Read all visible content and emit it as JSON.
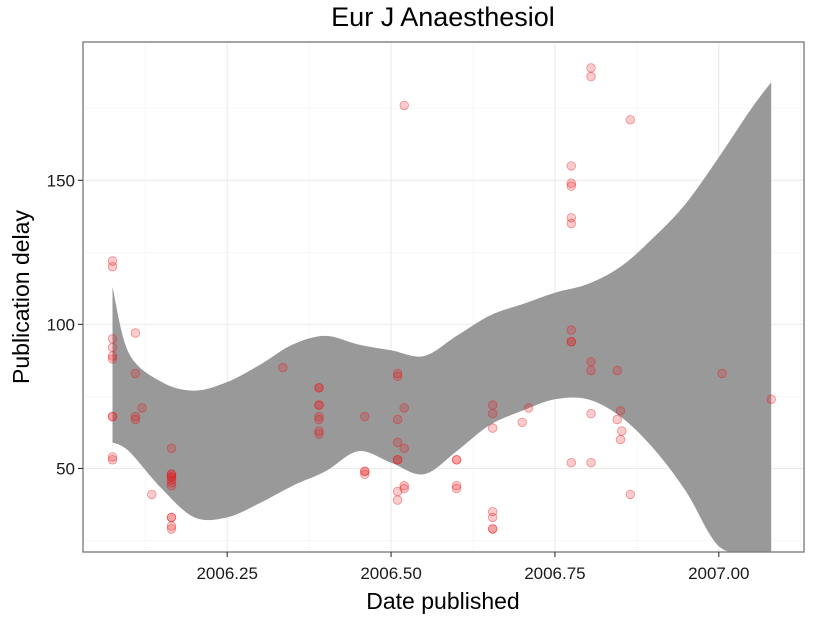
{
  "chart_data": {
    "type": "scatter",
    "title": "Eur J Anaesthesiol",
    "xlabel": "Date published",
    "ylabel": "Publication delay",
    "xlim": [
      2006.03,
      2007.13
    ],
    "ylim": [
      21,
      198
    ],
    "x_ticks": [
      2006.25,
      2006.5,
      2006.75,
      2007.0
    ],
    "x_tick_labels": [
      "2006.25",
      "2006.50",
      "2006.75",
      "2007.00"
    ],
    "y_ticks": [
      50,
      100,
      150
    ],
    "y_tick_labels": [
      "50",
      "100",
      "150"
    ],
    "grid": true,
    "legend": "none",
    "point_color": "#e8171b",
    "ribbon_color": "#999999",
    "series": [
      {
        "x": [
          2006.075,
          2006.075,
          2006.075,
          2006.075,
          2006.075,
          2006.075,
          2006.075,
          2006.075,
          2006.075,
          2006.075,
          2006.11,
          2006.11,
          2006.11,
          2006.11,
          2006.12,
          2006.135,
          2006.165,
          2006.165,
          2006.165,
          2006.165,
          2006.165,
          2006.165,
          2006.165,
          2006.165,
          2006.165,
          2006.165,
          2006.165,
          2006.165,
          2006.335,
          2006.39,
          2006.39,
          2006.39,
          2006.39,
          2006.39,
          2006.39,
          2006.39,
          2006.39,
          2006.46,
          2006.46,
          2006.46,
          2006.46,
          2006.51,
          2006.51,
          2006.51,
          2006.51,
          2006.51,
          2006.51,
          2006.51,
          2006.51,
          2006.52,
          2006.52,
          2006.52,
          2006.52,
          2006.52,
          2006.6,
          2006.6,
          2006.6,
          2006.6,
          2006.655,
          2006.655,
          2006.655,
          2006.655,
          2006.655,
          2006.655,
          2006.655,
          2006.7,
          2006.71,
          2006.775,
          2006.775,
          2006.775,
          2006.775,
          2006.775,
          2006.775,
          2006.775,
          2006.775,
          2006.775,
          2006.805,
          2006.805,
          2006.805,
          2006.805,
          2006.805,
          2006.805,
          2006.845,
          2006.845,
          2006.85,
          2006.85,
          2006.852,
          2006.865,
          2006.865,
          2007.005,
          2007.08
        ],
        "y": [
          122,
          120,
          95,
          92,
          89,
          88,
          68,
          68,
          54,
          53,
          97,
          83,
          68,
          67,
          71,
          41,
          57,
          48,
          47,
          46,
          45,
          44,
          48,
          47,
          33,
          33,
          30,
          29,
          85,
          78,
          78,
          72,
          72,
          68,
          67,
          63,
          62,
          68,
          49,
          49,
          48,
          83,
          82,
          67,
          59,
          53,
          53,
          42,
          39,
          176,
          71,
          57,
          44,
          43,
          53,
          53,
          44,
          43,
          72,
          69,
          64,
          35,
          33,
          29,
          29,
          66,
          71,
          155,
          149,
          148,
          137,
          135,
          98,
          94,
          94,
          52,
          189,
          186,
          87,
          84,
          69,
          52,
          84,
          67,
          60,
          70,
          63,
          171,
          41,
          83,
          74
        ]
      }
    ],
    "ribbon": {
      "x": [
        2006.075,
        2006.1,
        2006.15,
        2006.2,
        2006.25,
        2006.3,
        2006.35,
        2006.4,
        2006.45,
        2006.5,
        2006.55,
        2006.6,
        2006.65,
        2006.7,
        2006.75,
        2006.8,
        2006.85,
        2006.9,
        2006.95,
        2007.0,
        2007.05,
        2007.08
      ],
      "lower": [
        59,
        56,
        43,
        33,
        33,
        38,
        44,
        49,
        56,
        52,
        48,
        56,
        65,
        70,
        74,
        74,
        68,
        57,
        42,
        23,
        21,
        21
      ],
      "upper": [
        113,
        90,
        80,
        77,
        80,
        86,
        93,
        96,
        93,
        91,
        89,
        96,
        103,
        107,
        111,
        114,
        120,
        130,
        142,
        158,
        175,
        184
      ]
    }
  }
}
